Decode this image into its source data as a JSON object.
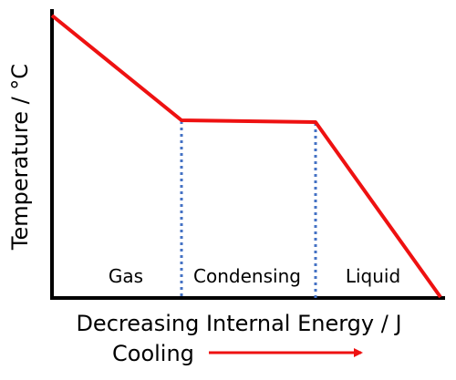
{
  "diagram": {
    "y_axis_label": "Temperature / °C",
    "x_axis_label": "Decreasing Internal Energy / J",
    "direction_label": "Cooling",
    "regions": [
      {
        "label": "Gas"
      },
      {
        "label": "Condensing"
      },
      {
        "label": "Liquid"
      }
    ],
    "colors": {
      "curve": "#ee1111",
      "phase_boundary": "#4472c4",
      "axis": "#000000",
      "arrow": "#ee1111"
    }
  }
}
